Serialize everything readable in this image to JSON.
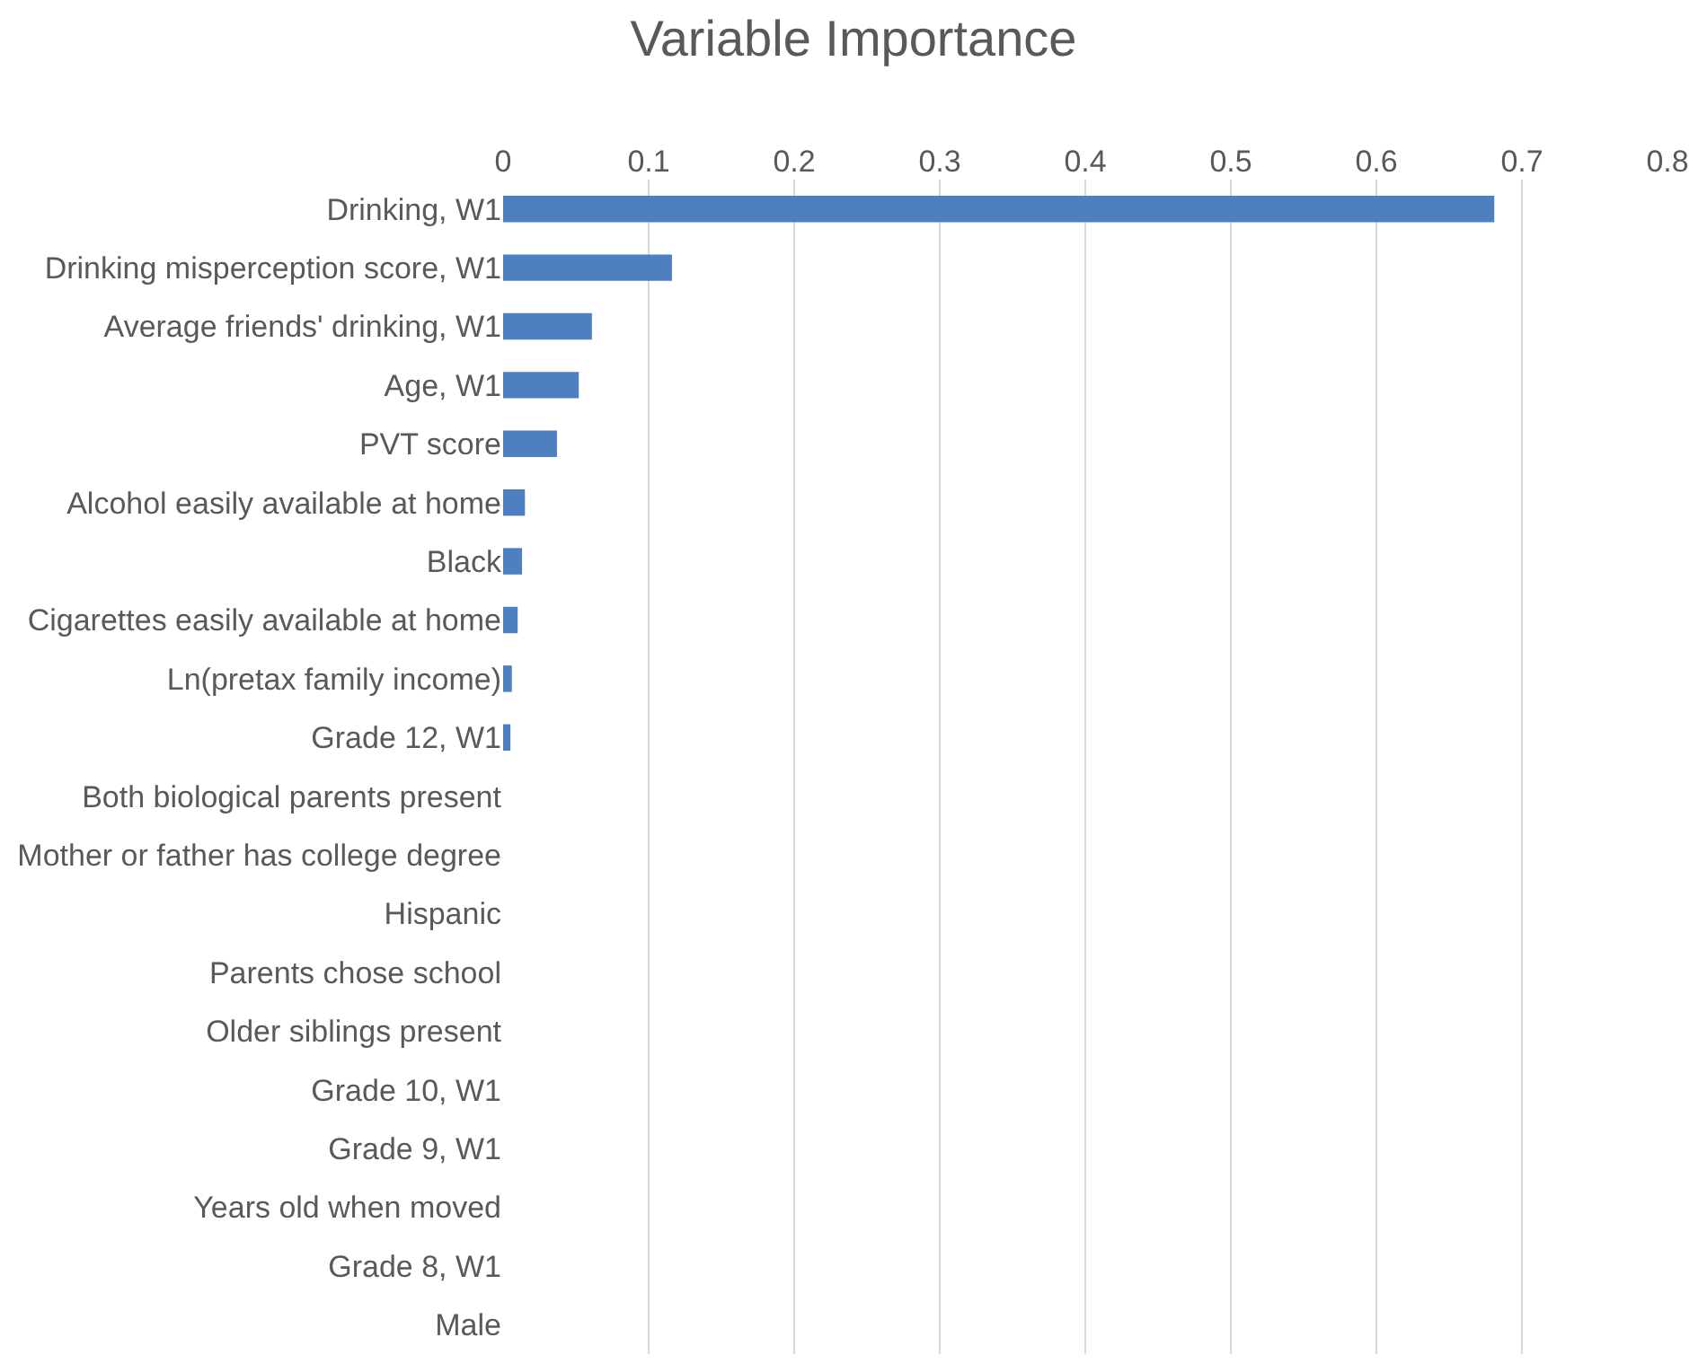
{
  "chart_data": {
    "type": "bar",
    "orientation": "horizontal",
    "title": "Variable Importance",
    "categories": [
      "Drinking, W1",
      "Drinking misperception score, W1",
      "Average friends' drinking, W1",
      "Age, W1",
      "PVT score",
      "Alcohol easily available at home",
      "Black",
      "Cigarettes easily available at home",
      "Ln(pretax family income)",
      "Grade 12, W1",
      "Both biological parents present",
      "Mother or father has college degree",
      "Hispanic",
      "Parents chose school",
      "Older siblings present",
      "Grade 10, W1",
      "Grade 9, W1",
      "Years old when moved",
      "Grade 8, W1",
      "Male"
    ],
    "values": [
      0.681,
      0.116,
      0.061,
      0.052,
      0.037,
      0.015,
      0.013,
      0.01,
      0.006,
      0.005,
      0,
      0,
      0,
      0,
      0,
      0,
      0,
      0,
      0,
      0
    ],
    "color": "#4e7fc0",
    "xlim": [
      0,
      0.8
    ],
    "xticks": [
      0,
      0.1,
      0.2,
      0.3,
      0.4,
      0.5,
      0.6,
      0.7,
      0.8
    ],
    "grid": "x",
    "legend": false
  }
}
